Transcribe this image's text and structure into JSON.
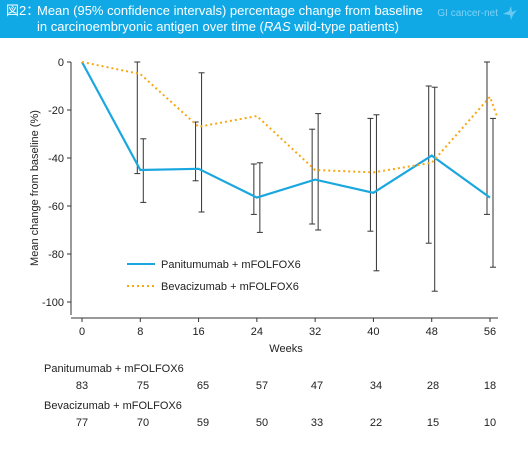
{
  "header": {
    "fig_label": "図2：",
    "title_line1": "Mean (95% confidence intervals) percentage change from baseline",
    "title_line2_pre": "in carcinoembryonic antigen over time (",
    "title_line2_italic": "RAS",
    "title_line2_post": " wild-type patients)",
    "brand": "GI cancer-net",
    "brand_icon": "crane-logo-icon",
    "background_color": "#10a9e6"
  },
  "chart_data": {
    "type": "line",
    "xlabel": "Weeks",
    "ylabel": "Mean change from baseline (%)",
    "x_ticks": [
      0,
      8,
      16,
      24,
      32,
      40,
      48,
      56
    ],
    "y_ticks": [
      0,
      -20,
      -40,
      -60,
      -80,
      -100
    ],
    "xlim": [
      0,
      56
    ],
    "ylim": [
      -105,
      0
    ],
    "grid": false,
    "legend_position": "bottom-left",
    "series": [
      {
        "name": "Panitumumab + mFOLFOX6",
        "color": "#1aa7e0",
        "style": "solid",
        "x": [
          0,
          8,
          16,
          24,
          32,
          40,
          48,
          56
        ],
        "y": [
          0,
          -45,
          -44.5,
          -56.5,
          -49,
          -54.5,
          -39,
          -56.5
        ],
        "ci_lower": [
          null,
          -58.5,
          -62.5,
          -71,
          -70,
          -87,
          -95.5,
          -85.5
        ],
        "ci_upper": [
          null,
          -32,
          -4.5,
          -42,
          -21.5,
          -22,
          -10.5,
          -23.5
        ]
      },
      {
        "name": "Bevacizumab + mFOLFOX6",
        "color": "#f7a712",
        "style": "dotted",
        "x": [
          0,
          8,
          16,
          24,
          32,
          40,
          48,
          56,
          57
        ],
        "y": [
          0,
          -5,
          -27,
          -22.5,
          -45,
          -46,
          -42,
          -14.5,
          -23
        ],
        "ci_lower": [
          null,
          -46.5,
          -49.5,
          -63.5,
          -67.5,
          -70.5,
          -75.5,
          -63.5,
          null
        ],
        "ci_upper": [
          null,
          0,
          -25,
          -42.5,
          -28,
          -23.5,
          -10,
          0,
          null
        ]
      }
    ]
  },
  "risk_table": {
    "rows": [
      {
        "label": "Panitumumab + mFOLFOX6",
        "counts": [
          "83",
          "75",
          "65",
          "57",
          "47",
          "34",
          "28",
          "18"
        ]
      },
      {
        "label": "Bevacizumab + mFOLFOX6",
        "counts": [
          "77",
          "70",
          "59",
          "50",
          "33",
          "22",
          "15",
          "10"
        ]
      }
    ]
  }
}
